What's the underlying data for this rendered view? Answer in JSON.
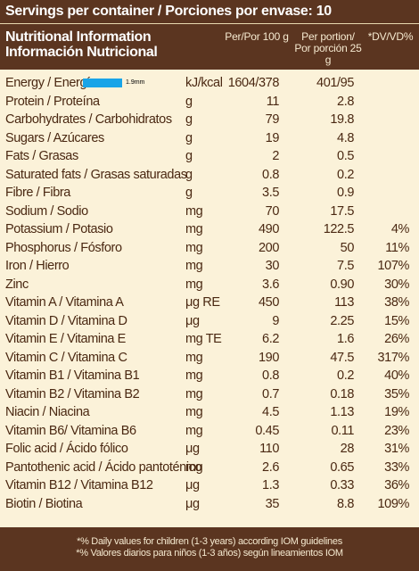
{
  "servings": "Servings per container / Porciones por envase: 10",
  "header": {
    "title_en": "Nutritional Information",
    "title_es": "Información Nutricional",
    "col_per100": "Per/Por 100 g",
    "col_portion_1": "Per portion/",
    "col_portion_2": "Por porción 25 g",
    "col_dv": "*DV/VD%"
  },
  "energy_note": "1.9mm",
  "rows": [
    {
      "name": "Energy / Energía",
      "unit": "kJ/kcal",
      "per100": "1604/378",
      "portion": "401/95",
      "dv": ""
    },
    {
      "name": "Protein / Proteína",
      "unit": "g",
      "per100": "11",
      "portion": "2.8",
      "dv": ""
    },
    {
      "name": "Carbohydrates / Carbohidratos",
      "unit": "g",
      "per100": "79",
      "portion": "19.8",
      "dv": ""
    },
    {
      "name": "Sugars / Azúcares",
      "unit": "g",
      "per100": "19",
      "portion": "4.8",
      "dv": ""
    },
    {
      "name": "Fats / Grasas",
      "unit": "g",
      "per100": "2",
      "portion": "0.5",
      "dv": ""
    },
    {
      "name": "Saturated fats / Grasas saturadas",
      "unit": "g",
      "per100": "0.8",
      "portion": "0.2",
      "dv": ""
    },
    {
      "name": "Fibre / Fibra",
      "unit": "g",
      "per100": "3.5",
      "portion": "0.9",
      "dv": ""
    },
    {
      "name": "Sodium / Sodio",
      "unit": "mg",
      "per100": "70",
      "portion": "17.5",
      "dv": ""
    },
    {
      "name": "Potassium / Potasio",
      "unit": "mg",
      "per100": "490",
      "portion": "122.5",
      "dv": "4%"
    },
    {
      "name": "Phosphorus / Fósforo",
      "unit": "mg",
      "per100": "200",
      "portion": "50",
      "dv": "11%"
    },
    {
      "name": "Iron / Hierro",
      "unit": "mg",
      "per100": "30",
      "portion": "7.5",
      "dv": "107%"
    },
    {
      "name": "Zinc",
      "unit": "mg",
      "per100": "3.6",
      "portion": "0.90",
      "dv": "30%"
    },
    {
      "name": "Vitamin A / Vitamina A",
      "unit": "μg RE",
      "per100": "450",
      "portion": "113",
      "dv": "38%"
    },
    {
      "name": "Vitamin D / Vitamina D",
      "unit": "μg",
      "per100": "9",
      "portion": "2.25",
      "dv": "15%"
    },
    {
      "name": "Vitamin  E / Vitamina E",
      "unit": "mg TE",
      "per100": "6.2",
      "portion": "1.6",
      "dv": "26%"
    },
    {
      "name": "Vitamin C / Vitamina C",
      "unit": "mg",
      "per100": "190",
      "portion": "47.5",
      "dv": "317%"
    },
    {
      "name": "Vitamin B1 / Vitamina B1",
      "unit": "mg",
      "per100": "0.8",
      "portion": "0.2",
      "dv": "40%"
    },
    {
      "name": "Vitamin B2 / Vitamina B2",
      "unit": "mg",
      "per100": "0.7",
      "portion": "0.18",
      "dv": "35%"
    },
    {
      "name": "Niacin / Niacina",
      "unit": "mg",
      "per100": "4.5",
      "portion": "1.13",
      "dv": "19%"
    },
    {
      "name": "Vitamin B6/ Vitamina B6",
      "unit": "mg",
      "per100": "0.45",
      "portion": "0.11",
      "dv": "23%"
    },
    {
      "name": "Folic acid / Ácido fólico",
      "unit": "μg",
      "per100": "110",
      "portion": "28",
      "dv": "31%"
    },
    {
      "name": "Pantothenic acid / Ácido pantoténico",
      "unit": "mg",
      "per100": "2.6",
      "portion": "0.65",
      "dv": "33%"
    },
    {
      "name": "Vitamin B12 / Vitamina  B12",
      "unit": "μg",
      "per100": "1.3",
      "portion": "0.33",
      "dv": "36%"
    },
    {
      "name": "Biotin / Biotina",
      "unit": "μg",
      "per100": "35",
      "portion": "8.8",
      "dv": "109%"
    }
  ],
  "footer": {
    "line1": "*% Daily values for children (1-3 years) according IOM guidelines",
    "line2": "*% Valores diarios para niños (1-3 años) según lineamientos IOM"
  },
  "colors": {
    "brown": "#5b3520",
    "cream": "#fbf2d9",
    "text": "#4a2812",
    "blue_bar": "#18a4e8"
  }
}
